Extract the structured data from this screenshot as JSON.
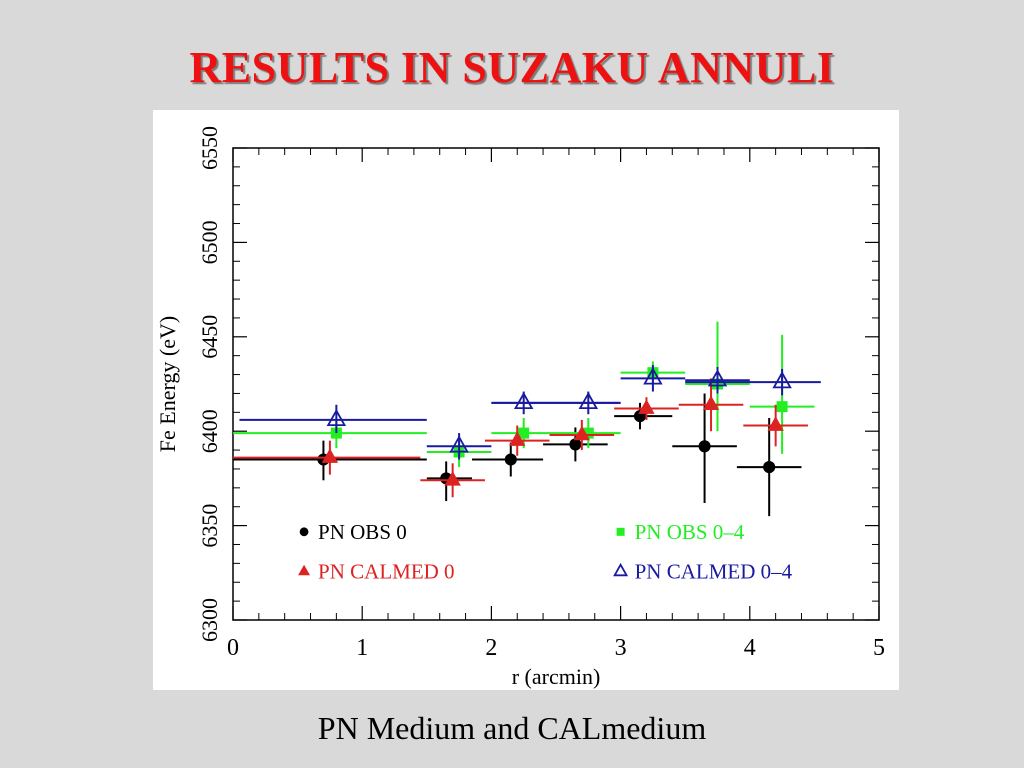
{
  "slide": {
    "title": "RESULTS IN SUZAKU ANNULI",
    "caption": "PN Medium and CALmedium"
  },
  "chart_data": {
    "type": "scatter",
    "xlabel": "r (arcmin)",
    "ylabel": "Fe Energy (eV)",
    "xlim": [
      0,
      5
    ],
    "ylim": [
      6300,
      6550
    ],
    "x_ticks": [
      0,
      1,
      2,
      3,
      4,
      5
    ],
    "y_ticks": [
      6300,
      6350,
      6400,
      6450,
      6500,
      6550
    ],
    "grid": false,
    "legend_position": "bottom-inside",
    "series": [
      {
        "name": "PN OBS 0",
        "color": "#000000",
        "marker": "circle",
        "points": [
          {
            "x": 0.7,
            "y": 6385,
            "xerr": [
              0.0,
              1.5
            ],
            "yerr": [
              6374,
              6395
            ]
          },
          {
            "x": 1.65,
            "y": 6375,
            "xerr": [
              1.5,
              1.85
            ],
            "yerr": [
              6363,
              6384
            ]
          },
          {
            "x": 2.15,
            "y": 6385,
            "xerr": [
              1.85,
              2.4
            ],
            "yerr": [
              6376,
              6394
            ]
          },
          {
            "x": 2.65,
            "y": 6393,
            "xerr": [
              2.4,
              2.9
            ],
            "yerr": [
              6384,
              6402
            ]
          },
          {
            "x": 3.15,
            "y": 6408,
            "xerr": [
              2.95,
              3.4
            ],
            "yerr": [
              6401,
              6415
            ]
          },
          {
            "x": 3.65,
            "y": 6392,
            "xerr": [
              3.4,
              3.9
            ],
            "yerr": [
              6362,
              6420
            ]
          },
          {
            "x": 4.15,
            "y": 6381,
            "xerr": [
              3.9,
              4.4
            ],
            "yerr": [
              6355,
              6407
            ]
          }
        ]
      },
      {
        "name": "PN OBS 0–4",
        "color": "#22ee22",
        "marker": "square",
        "points": [
          {
            "x": 0.8,
            "y": 6399,
            "xerr": [
              0.0,
              1.5
            ],
            "yerr": [
              6391,
              6407
            ]
          },
          {
            "x": 1.75,
            "y": 6389,
            "xerr": [
              1.5,
              2.0
            ],
            "yerr": [
              6381,
              6397
            ]
          },
          {
            "x": 2.25,
            "y": 6399,
            "xerr": [
              2.0,
              2.5
            ],
            "yerr": [
              6391,
              6407
            ]
          },
          {
            "x": 2.75,
            "y": 6399,
            "xerr": [
              2.5,
              3.0
            ],
            "yerr": [
              6391,
              6407
            ]
          },
          {
            "x": 3.25,
            "y": 6431,
            "xerr": [
              3.0,
              3.5
            ],
            "yerr": [
              6425,
              6437
            ]
          },
          {
            "x": 3.75,
            "y": 6425,
            "xerr": [
              3.5,
              4.0
            ],
            "yerr": [
              6400,
              6458
            ]
          },
          {
            "x": 4.25,
            "y": 6413,
            "xerr": [
              4.0,
              4.5
            ],
            "yerr": [
              6388,
              6451
            ]
          }
        ]
      },
      {
        "name": "PN CALMED 0",
        "color": "#dd2222",
        "marker": "triangle-filled",
        "points": [
          {
            "x": 0.75,
            "y": 6386,
            "xerr": [
              0.0,
              1.45
            ],
            "yerr": [
              6377,
              6395
            ]
          },
          {
            "x": 1.7,
            "y": 6374,
            "xerr": [
              1.45,
              1.95
            ],
            "yerr": [
              6365,
              6383
            ]
          },
          {
            "x": 2.2,
            "y": 6395,
            "xerr": [
              1.95,
              2.45
            ],
            "yerr": [
              6387,
              6403
            ]
          },
          {
            "x": 2.7,
            "y": 6398,
            "xerr": [
              2.45,
              2.95
            ],
            "yerr": [
              6390,
              6406
            ]
          },
          {
            "x": 3.2,
            "y": 6412,
            "xerr": [
              2.95,
              3.45
            ],
            "yerr": [
              6406,
              6418
            ]
          },
          {
            "x": 3.7,
            "y": 6414,
            "xerr": [
              3.45,
              3.95
            ],
            "yerr": [
              6400,
              6428
            ]
          },
          {
            "x": 4.2,
            "y": 6403,
            "xerr": [
              3.95,
              4.45
            ],
            "yerr": [
              6392,
              6414
            ]
          }
        ]
      },
      {
        "name": "PN CALMED 0–4",
        "color": "#1a1aa0",
        "marker": "triangle-open",
        "points": [
          {
            "x": 0.8,
            "y": 6406,
            "xerr": [
              0.05,
              1.5
            ],
            "yerr": [
              6399,
              6414
            ]
          },
          {
            "x": 1.75,
            "y": 6392,
            "xerr": [
              1.5,
              2.0
            ],
            "yerr": [
              6385,
              6399
            ]
          },
          {
            "x": 2.25,
            "y": 6415,
            "xerr": [
              2.0,
              3.0
            ],
            "yerr": [
              6409,
              6421
            ]
          },
          {
            "x": 2.75,
            "y": 6415,
            "xerr": [
              2.0,
              3.0
            ],
            "yerr": [
              6409,
              6421
            ]
          },
          {
            "x": 3.25,
            "y": 6428,
            "xerr": [
              3.0,
              3.5
            ],
            "yerr": [
              6421,
              6435
            ]
          },
          {
            "x": 3.75,
            "y": 6427,
            "xerr": [
              3.5,
              4.0
            ],
            "yerr": [
              6420,
              6434
            ]
          },
          {
            "x": 4.25,
            "y": 6426,
            "xerr": [
              3.5,
              4.55
            ],
            "yerr": [
              6419,
              6433
            ]
          }
        ]
      }
    ]
  }
}
